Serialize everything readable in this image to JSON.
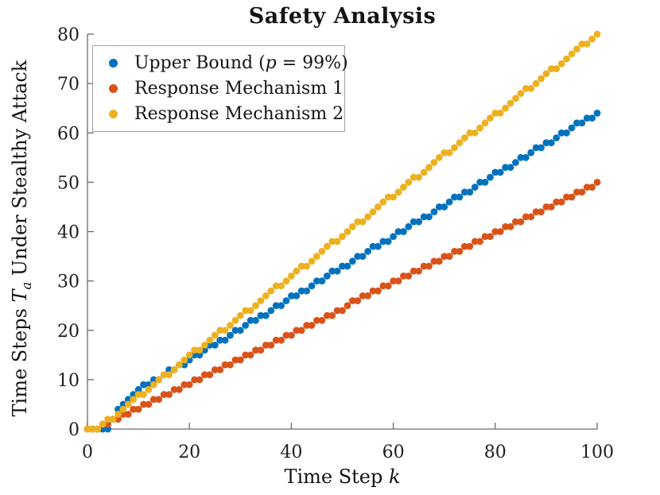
{
  "title": "Safety Analysis",
  "axes": {
    "xlabel": {
      "pre": "Time Step ",
      "var": "k"
    },
    "ylabel": {
      "pre": "Time Steps ",
      "var": "T",
      "sub": "a",
      "post": " Under Stealthy Attack"
    },
    "xticks": [
      0,
      20,
      40,
      60,
      80,
      100
    ],
    "yticks": [
      0,
      10,
      20,
      30,
      40,
      50,
      60,
      70,
      80
    ],
    "xlim": [
      0,
      100
    ],
    "ylim": [
      0,
      80
    ]
  },
  "legend": {
    "items": [
      {
        "label_pre": "Upper Bound (",
        "label_var": "p",
        "label_post": " = 99%)",
        "color": "#0072BD",
        "series": "upper-bound"
      },
      {
        "label_pre": "Response Mechanism 1",
        "label_var": "",
        "label_post": "",
        "color": "#D95319",
        "series": "mechanism-1"
      },
      {
        "label_pre": "Response Mechanism 2",
        "label_var": "",
        "label_post": "",
        "color": "#EDB120",
        "series": "mechanism-2"
      }
    ]
  },
  "colors": {
    "axis_line": "#6b6b6b",
    "tick_text": "#202020",
    "blue": "#0072BD",
    "orange": "#D95319",
    "yellow": "#EDB120",
    "legend_border": "#a3a3a3",
    "background": "#ffffff"
  },
  "chart_data": {
    "type": "scatter",
    "title": "Safety Analysis",
    "xlabel": "Time Step k",
    "ylabel": "Time Steps T_a Under Stealthy Attack",
    "xlim": [
      0,
      100
    ],
    "ylim": [
      0,
      80
    ],
    "grid": false,
    "marker": "filled-circle",
    "legend_position": "top-left",
    "x": [
      0,
      1,
      2,
      3,
      4,
      5,
      6,
      7,
      8,
      9,
      10,
      11,
      12,
      13,
      14,
      15,
      16,
      17,
      18,
      19,
      20,
      21,
      22,
      23,
      24,
      25,
      26,
      27,
      28,
      29,
      30,
      31,
      32,
      33,
      34,
      35,
      36,
      37,
      38,
      39,
      40,
      41,
      42,
      43,
      44,
      45,
      46,
      47,
      48,
      49,
      50,
      51,
      52,
      53,
      54,
      55,
      56,
      57,
      58,
      59,
      60,
      61,
      62,
      63,
      64,
      65,
      66,
      67,
      68,
      69,
      70,
      71,
      72,
      73,
      74,
      75,
      76,
      77,
      78,
      79,
      80,
      81,
      82,
      83,
      84,
      85,
      86,
      87,
      88,
      89,
      90,
      91,
      92,
      93,
      94,
      95,
      96,
      97,
      98,
      99,
      100
    ],
    "series": [
      {
        "name": "Upper Bound (p = 99%)",
        "color": "#0072BD",
        "values": [
          0,
          0,
          0,
          0,
          0,
          2,
          4,
          5,
          6,
          7,
          8,
          9,
          9,
          10,
          10,
          11,
          12,
          12,
          13,
          13,
          14,
          15,
          15,
          16,
          17,
          17,
          18,
          18,
          19,
          20,
          20,
          21,
          22,
          22,
          23,
          23,
          24,
          25,
          25,
          26,
          27,
          27,
          28,
          28,
          29,
          30,
          30,
          31,
          32,
          32,
          33,
          33,
          34,
          35,
          35,
          36,
          37,
          37,
          38,
          38,
          39,
          40,
          40,
          41,
          42,
          42,
          43,
          43,
          44,
          45,
          45,
          46,
          47,
          47,
          48,
          48,
          49,
          50,
          50,
          51,
          52,
          52,
          53,
          53,
          54,
          55,
          55,
          56,
          57,
          57,
          58,
          58,
          59,
          60,
          60,
          61,
          62,
          62,
          63,
          63,
          64
        ]
      },
      {
        "name": "Response Mechanism 1",
        "color": "#D95319",
        "values": [
          0,
          0,
          0,
          1,
          1,
          2,
          2,
          3,
          3,
          4,
          4,
          5,
          5,
          6,
          6,
          7,
          7,
          8,
          8,
          9,
          9,
          10,
          10,
          11,
          11,
          12,
          12,
          13,
          13,
          14,
          14,
          15,
          15,
          16,
          16,
          17,
          17,
          18,
          18,
          19,
          19,
          20,
          20,
          21,
          21,
          22,
          22,
          23,
          23,
          24,
          24,
          25,
          26,
          26,
          27,
          27,
          28,
          28,
          29,
          29,
          30,
          30,
          31,
          31,
          32,
          32,
          33,
          33,
          34,
          34,
          35,
          35,
          36,
          36,
          37,
          37,
          38,
          38,
          39,
          39,
          40,
          40,
          41,
          41,
          42,
          42,
          43,
          43,
          44,
          44,
          45,
          45,
          46,
          46,
          47,
          47,
          48,
          48,
          49,
          49,
          50
        ]
      },
      {
        "name": "Response Mechanism 2",
        "color": "#EDB120",
        "values": [
          0,
          0,
          0,
          1,
          2,
          2,
          3,
          4,
          5,
          6,
          7,
          7,
          8,
          9,
          10,
          11,
          11,
          12,
          13,
          14,
          15,
          16,
          16,
          17,
          18,
          19,
          20,
          20,
          21,
          22,
          23,
          24,
          24,
          25,
          26,
          27,
          28,
          29,
          29,
          30,
          31,
          32,
          33,
          33,
          34,
          35,
          36,
          37,
          38,
          38,
          39,
          40,
          41,
          42,
          42,
          43,
          44,
          45,
          46,
          47,
          47,
          48,
          49,
          50,
          51,
          51,
          52,
          53,
          54,
          55,
          56,
          56,
          57,
          58,
          59,
          60,
          60,
          61,
          62,
          63,
          64,
          64,
          65,
          66,
          67,
          68,
          69,
          69,
          70,
          71,
          72,
          73,
          73,
          74,
          75,
          76,
          77,
          78,
          78,
          79,
          80
        ]
      }
    ]
  }
}
